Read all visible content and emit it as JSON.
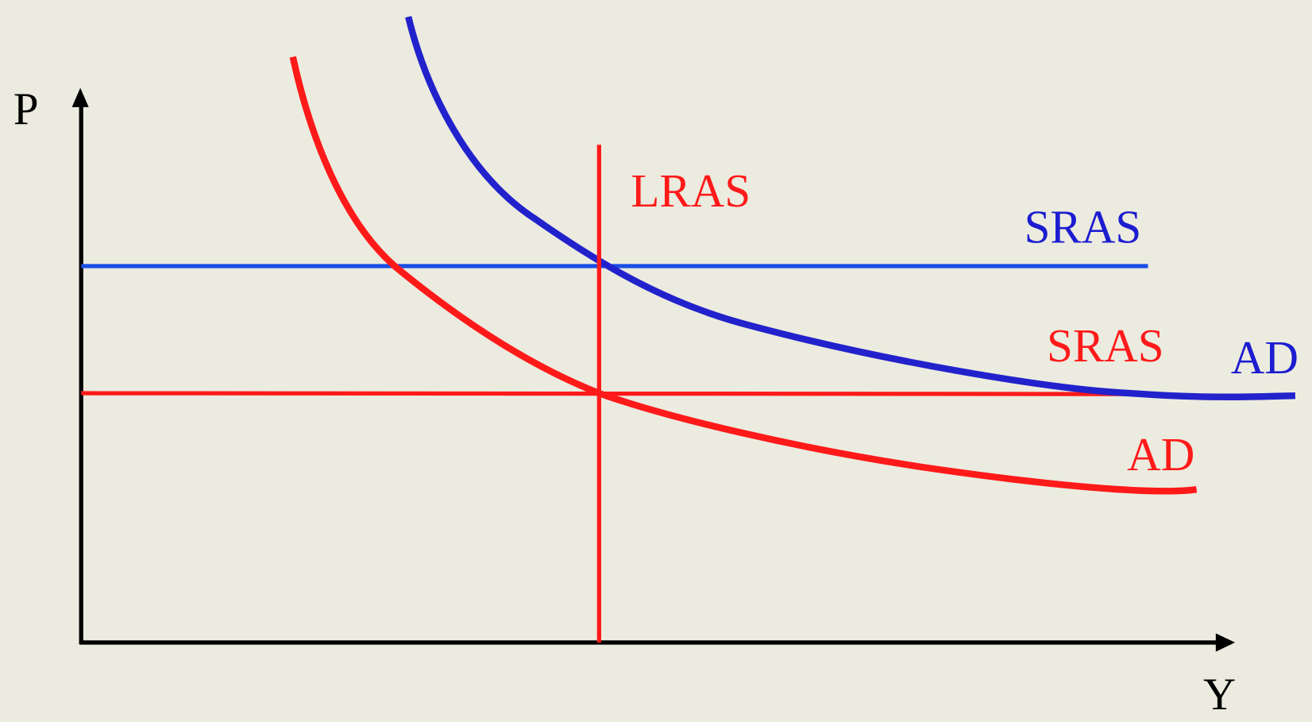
{
  "axes": {
    "y_label": "P",
    "x_label": "Y"
  },
  "curves": {
    "lras": {
      "label": "LRAS"
    },
    "sras_blue": {
      "label": "SRAS"
    },
    "sras_red": {
      "label": "SRAS"
    },
    "ad_blue": {
      "label": "AD"
    },
    "ad_red": {
      "label": "AD"
    }
  }
}
